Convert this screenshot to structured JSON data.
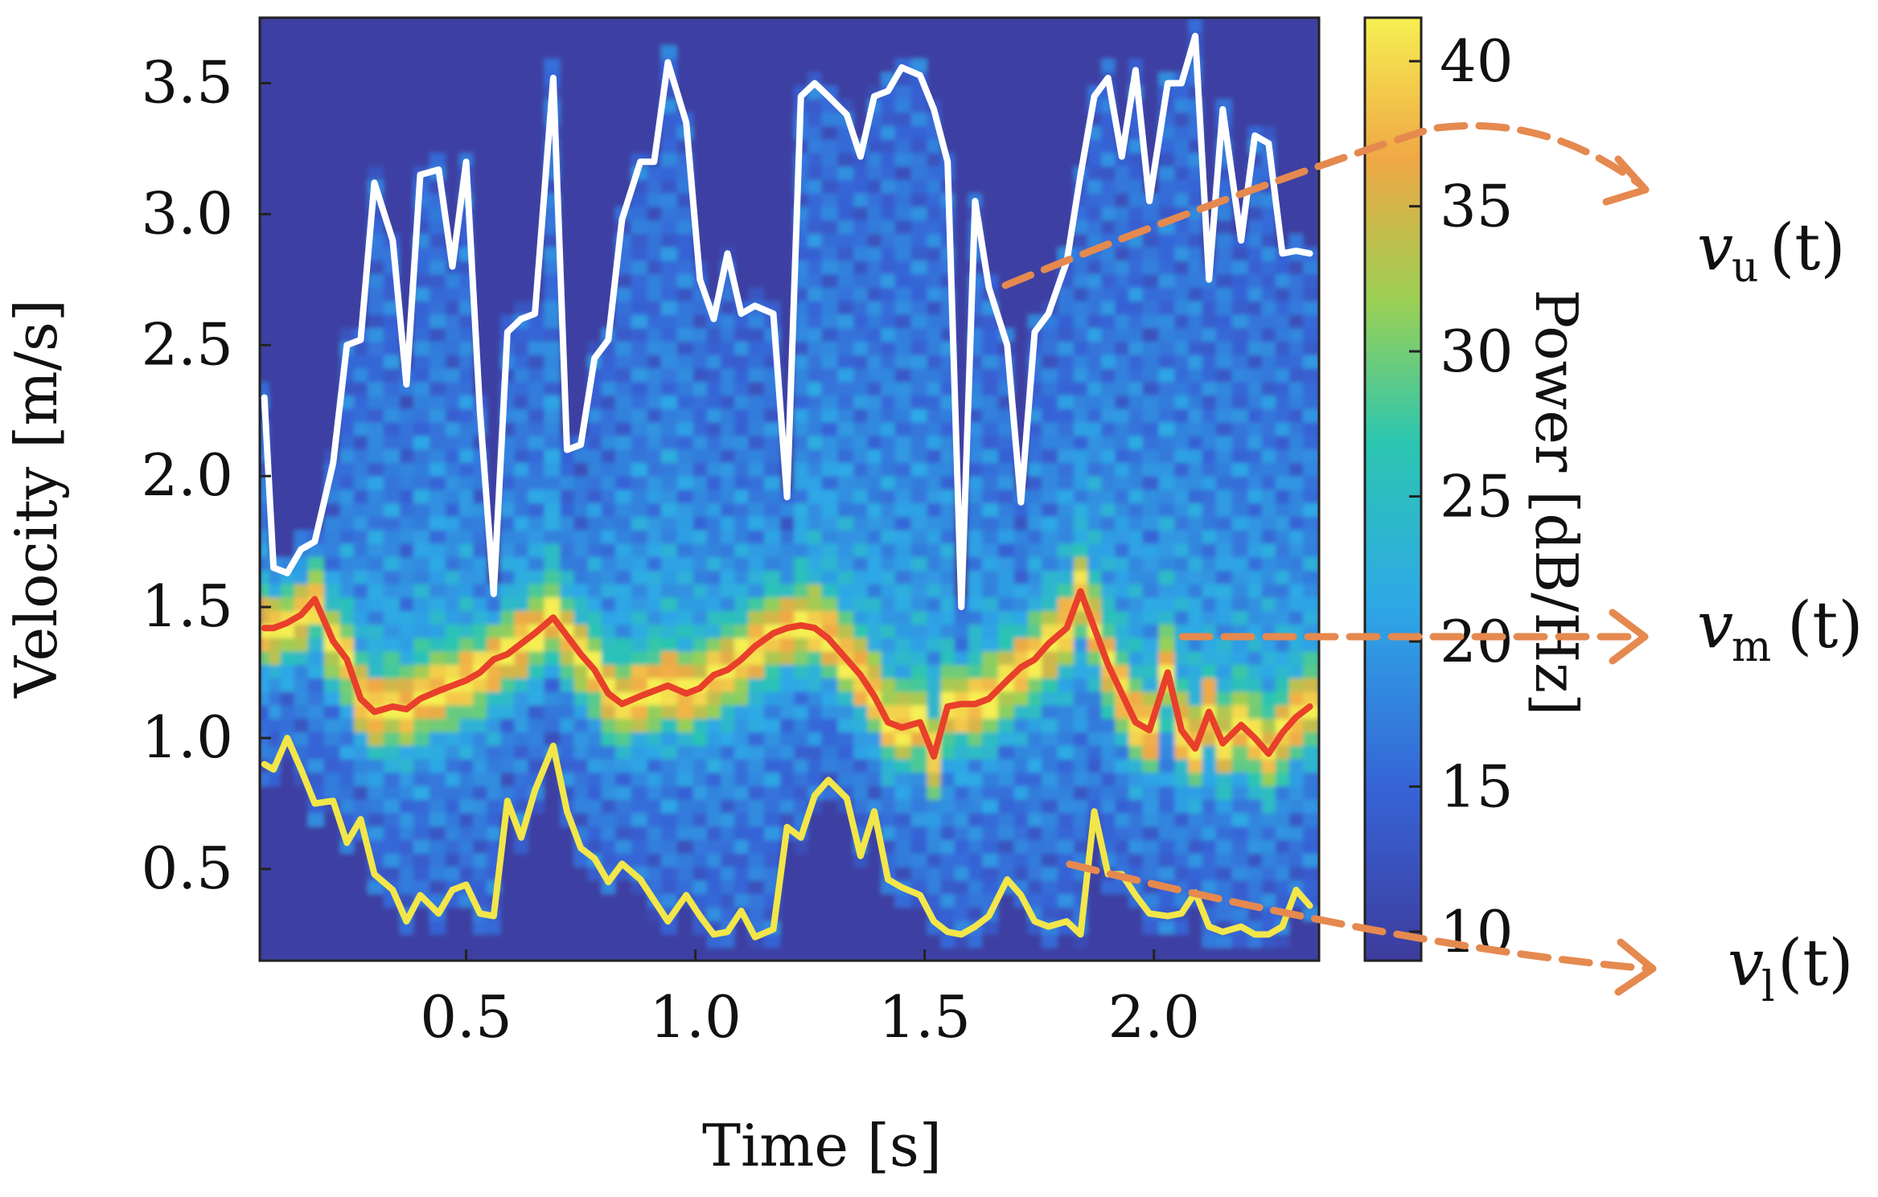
{
  "chart_data": {
    "type": "heatmap",
    "title": "",
    "xlabel": "Time [s]",
    "ylabel": "Velocity [m/s]",
    "xlim": [
      0.05,
      2.36
    ],
    "ylim": [
      0.15,
      3.75
    ],
    "xticks": [
      0.5,
      1.0,
      1.5,
      2.0
    ],
    "xtick_labels": [
      "0.5",
      "1.0",
      "1.5",
      "2.0"
    ],
    "yticks": [
      0.5,
      1.0,
      1.5,
      2.0,
      2.5,
      3.0,
      3.5
    ],
    "ytick_labels": [
      "0.5",
      "1.0",
      "1.5",
      "2.0",
      "2.5",
      "3.0",
      "3.5"
    ],
    "colorbar": {
      "label": "Power [dB/Hz]",
      "range": [
        9,
        41.5
      ],
      "ticks": [
        10,
        15,
        20,
        25,
        30,
        35,
        40
      ],
      "tick_labels": [
        "10",
        "15",
        "20",
        "25",
        "30",
        "35",
        "40"
      ]
    },
    "time_grid": [
      0.06,
      0.08,
      0.11,
      0.14,
      0.17,
      0.21,
      0.24,
      0.27,
      0.3,
      0.34,
      0.37,
      0.4,
      0.44,
      0.47,
      0.5,
      0.53,
      0.56,
      0.59,
      0.62,
      0.65,
      0.69,
      0.72,
      0.75,
      0.78,
      0.81,
      0.84,
      0.88,
      0.91,
      0.94,
      0.98,
      1.01,
      1.04,
      1.07,
      1.1,
      1.13,
      1.17,
      1.2,
      1.23,
      1.26,
      1.29,
      1.33,
      1.36,
      1.39,
      1.42,
      1.45,
      1.49,
      1.52,
      1.55,
      1.58,
      1.61,
      1.64,
      1.68,
      1.71,
      1.74,
      1.77,
      1.81,
      1.84,
      1.87,
      1.9,
      1.93,
      1.96,
      1.99,
      2.03,
      2.06,
      2.09,
      2.12,
      2.15,
      2.19,
      2.22,
      2.25,
      2.28,
      2.31,
      2.34
    ],
    "series": [
      {
        "name": "v_u(t)",
        "color": "#ffffff",
        "values": [
          2.3,
          1.65,
          1.63,
          1.72,
          1.75,
          2.05,
          2.5,
          2.52,
          3.12,
          2.9,
          2.35,
          3.15,
          3.17,
          2.8,
          3.2,
          2.25,
          1.55,
          2.55,
          2.6,
          2.62,
          3.52,
          2.1,
          2.12,
          2.45,
          2.52,
          2.98,
          3.2,
          3.2,
          3.58,
          3.35,
          2.75,
          2.6,
          2.85,
          2.62,
          2.65,
          2.62,
          1.92,
          3.45,
          3.5,
          3.45,
          3.38,
          3.22,
          3.45,
          3.47,
          3.56,
          3.53,
          3.4,
          3.2,
          1.5,
          3.05,
          2.72,
          2.5,
          1.9,
          2.55,
          2.62,
          2.82,
          3.15,
          3.45,
          3.52,
          3.22,
          3.55,
          3.05,
          3.5,
          3.5,
          3.68,
          2.75,
          3.4,
          2.9,
          3.3,
          3.27,
          2.85,
          2.86,
          2.85
        ]
      },
      {
        "name": "v_m(t)",
        "color": "#e8402b",
        "values": [
          1.42,
          1.42,
          1.44,
          1.47,
          1.53,
          1.37,
          1.3,
          1.15,
          1.1,
          1.12,
          1.11,
          1.15,
          1.18,
          1.2,
          1.22,
          1.25,
          1.3,
          1.32,
          1.36,
          1.4,
          1.46,
          1.39,
          1.32,
          1.26,
          1.17,
          1.13,
          1.16,
          1.18,
          1.2,
          1.17,
          1.19,
          1.24,
          1.26,
          1.3,
          1.35,
          1.4,
          1.42,
          1.43,
          1.42,
          1.38,
          1.3,
          1.24,
          1.16,
          1.06,
          1.04,
          1.06,
          0.93,
          1.12,
          1.13,
          1.13,
          1.15,
          1.22,
          1.27,
          1.3,
          1.36,
          1.42,
          1.56,
          1.42,
          1.28,
          1.17,
          1.06,
          1.03,
          1.25,
          1.03,
          0.96,
          1.1,
          0.98,
          1.05,
          1.0,
          0.94,
          1.02,
          1.08,
          1.12
        ]
      },
      {
        "name": "v_l(t)",
        "color": "#f2e64a",
        "values": [
          0.9,
          0.88,
          1.0,
          0.88,
          0.75,
          0.76,
          0.6,
          0.69,
          0.48,
          0.42,
          0.3,
          0.4,
          0.33,
          0.42,
          0.44,
          0.33,
          0.32,
          0.76,
          0.62,
          0.8,
          0.97,
          0.72,
          0.58,
          0.54,
          0.45,
          0.52,
          0.46,
          0.38,
          0.3,
          0.4,
          0.32,
          0.25,
          0.26,
          0.34,
          0.24,
          0.27,
          0.66,
          0.62,
          0.78,
          0.84,
          0.77,
          0.55,
          0.72,
          0.46,
          0.43,
          0.4,
          0.3,
          0.26,
          0.25,
          0.28,
          0.32,
          0.46,
          0.4,
          0.3,
          0.28,
          0.3,
          0.25,
          0.72,
          0.48,
          0.48,
          0.4,
          0.33,
          0.32,
          0.33,
          0.41,
          0.28,
          0.26,
          0.28,
          0.25,
          0.25,
          0.28,
          0.42,
          0.36
        ]
      }
    ],
    "annotations": [
      {
        "symbol": "v",
        "subscript": "u",
        "suffix": "(t)",
        "target": "v_u(t)",
        "color": "#e5894f"
      },
      {
        "symbol": "v",
        "subscript": "m",
        "suffix": "(t)",
        "target": "v_m(t)",
        "color": "#e5894f"
      },
      {
        "symbol": "v",
        "subscript": "l",
        "suffix": "(t)",
        "target": "v_l(t)",
        "color": "#e5894f"
      }
    ]
  }
}
